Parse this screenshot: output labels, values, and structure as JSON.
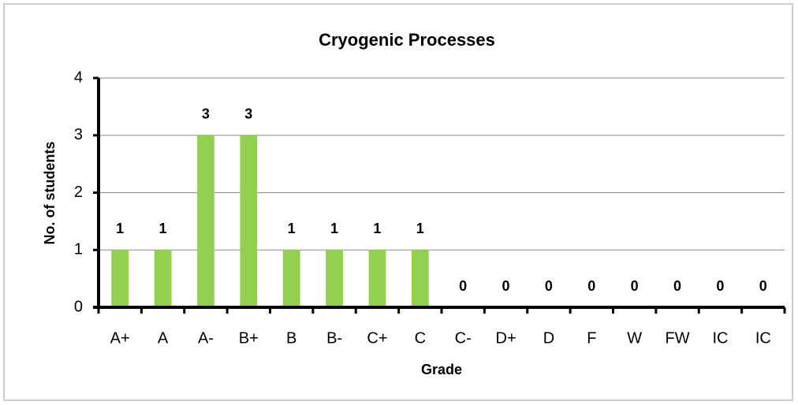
{
  "chart_data": {
    "type": "bar",
    "title": "Cryogenic Processes",
    "x_label": "Grade",
    "y_label": "No. of students",
    "categories": [
      "A+",
      "A",
      "A-",
      "B+",
      "B",
      "B-",
      "C+",
      "C",
      "C-",
      "D+",
      "D",
      "F",
      "W",
      "FW",
      "IC",
      "IC"
    ],
    "values": [
      1,
      1,
      3,
      3,
      1,
      1,
      1,
      1,
      0,
      0,
      0,
      0,
      0,
      0,
      0,
      0
    ],
    "color": "#92d050",
    "ylim": [
      0,
      4
    ],
    "yticks": [
      0,
      1,
      2,
      3,
      4
    ],
    "grid": true
  }
}
